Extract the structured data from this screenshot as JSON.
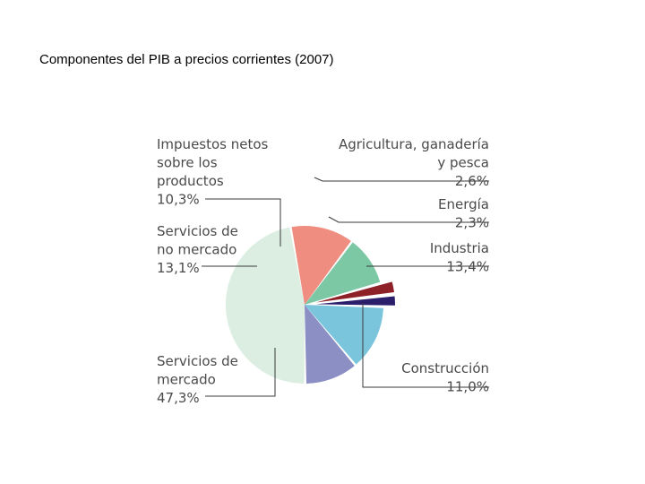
{
  "page": {
    "title": "Componentes del PIB a precios corrientes (2007)"
  },
  "chart_data": {
    "type": "pie",
    "title": "Componentes del PIB a precios corrientes (2007)",
    "slices": [
      {
        "name_lines": [
          "Agricultura, ganadería",
          "y pesca"
        ],
        "value": 2.6,
        "value_label": "2,6%",
        "color": "#8e2127",
        "exploded": true
      },
      {
        "name_lines": [
          "Energía"
        ],
        "value": 2.3,
        "value_label": "2,3%",
        "color": "#2b1f6b",
        "exploded": true
      },
      {
        "name_lines": [
          "Industria"
        ],
        "value": 13.4,
        "value_label": "13,4%",
        "color": "#7ac5dc",
        "exploded": false
      },
      {
        "name_lines": [
          "Construcción"
        ],
        "value": 11.0,
        "value_label": "11,0%",
        "color": "#8b8fc4",
        "exploded": false
      },
      {
        "name_lines": [
          "Servicios de",
          "mercado"
        ],
        "value": 47.3,
        "value_label": "47,3%",
        "color": "#dbeee1",
        "exploded": false
      },
      {
        "name_lines": [
          "Servicios de",
          "no mercado"
        ],
        "value": 13.1,
        "value_label": "13,1%",
        "color": "#ef8d80",
        "exploded": false
      },
      {
        "name_lines": [
          "Impuestos netos",
          "sobre los",
          "productos"
        ],
        "value": 10.3,
        "value_label": "10,3%",
        "color": "#7cc7a4",
        "exploded": false
      }
    ]
  }
}
